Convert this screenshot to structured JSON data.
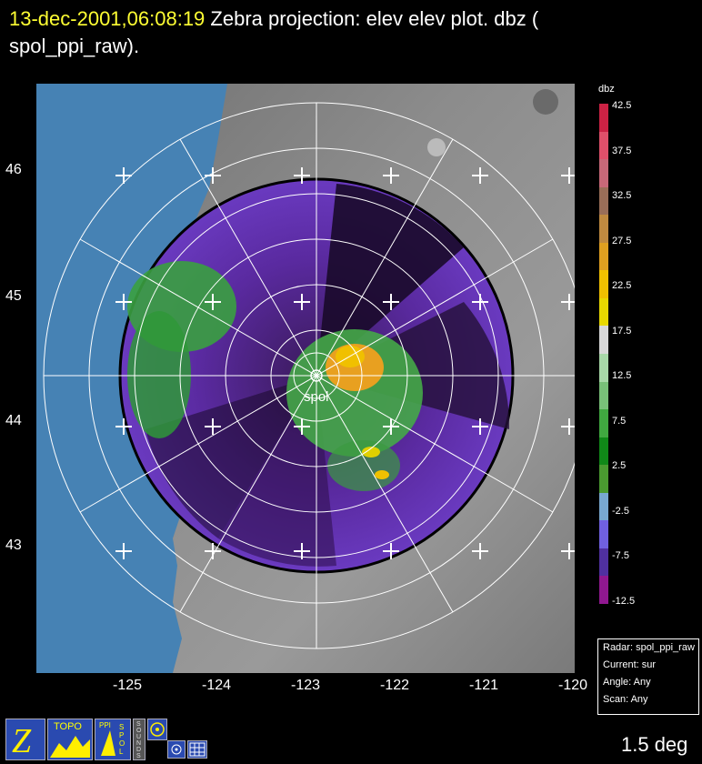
{
  "title": {
    "timestamp": "13-dec-2001,06:08:19",
    "text": "Zebra projection: elev elev  plot.  dbz (",
    "text2": "spol_ppi_raw)."
  },
  "site_label": "spol",
  "lat_labels": [
    "46",
    "45",
    "44",
    "43"
  ],
  "lon_labels": [
    "-125",
    "-124",
    "-123",
    "-122",
    "-121",
    "-120"
  ],
  "colorbar": {
    "title": "dbz",
    "ticks": [
      "42.5",
      "37.5",
      "32.5",
      "27.5",
      "22.5",
      "17.5",
      "12.5",
      "7.5",
      "2.5",
      "-2.5",
      "-7.5",
      "-12.5"
    ],
    "colors": [
      "#cc2244",
      "#e0506a",
      "#c86878",
      "#9a6e58",
      "#c08a40",
      "#e0a020",
      "#f0c000",
      "#e8d800",
      "#d8d8d8",
      "#a8d8a8",
      "#78c078",
      "#40a840",
      "#108818",
      "#4a9a30",
      "#78a8d0",
      "#7060e0",
      "#5030a0",
      "#901890"
    ]
  },
  "info": {
    "radar": "Radar: spol_ppi_raw",
    "current": "Current: sur",
    "angle": "Angle: Any",
    "scan": "Scan: Any"
  },
  "elevation": "1.5 deg",
  "icons": {
    "topo": "TOPO",
    "ppi": "PPI",
    "spol": "SPOL",
    "sounds": "SOUNDS"
  },
  "colors": {
    "ocean": "#4682b4",
    "title_timestamp": "#ffff33"
  }
}
